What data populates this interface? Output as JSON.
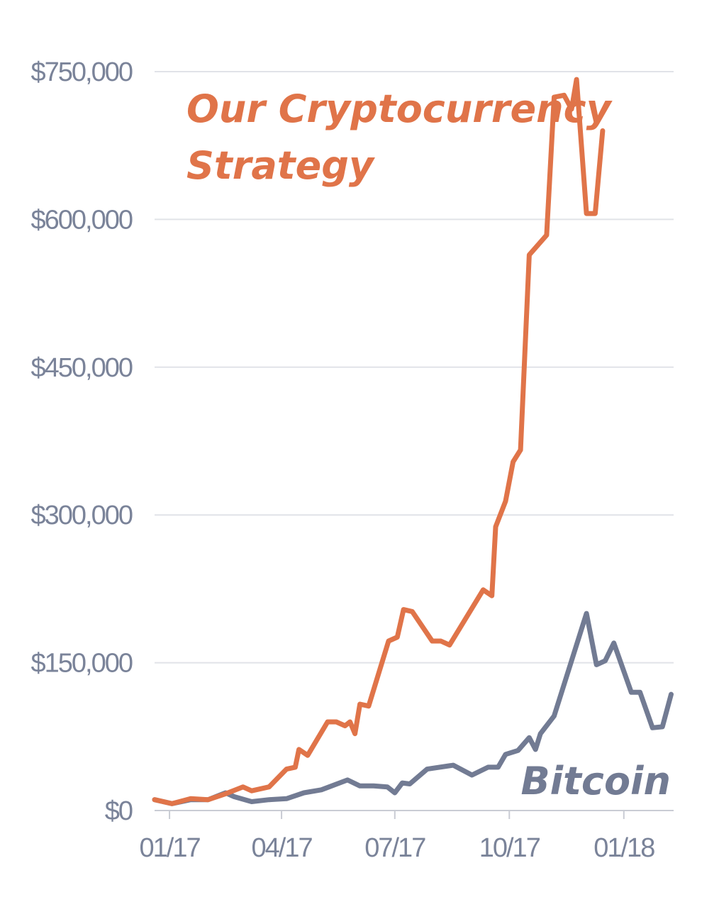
{
  "chart_data": {
    "type": "line",
    "title": "",
    "xlabel": "",
    "ylabel": "",
    "x_ticks": [
      "01/17",
      "04/17",
      "07/17",
      "10/17",
      "01/18"
    ],
    "y_ticks": [
      "$0",
      "$150,000",
      "$300,000",
      "$450,000",
      "$600,000",
      "$750,000"
    ],
    "ylim": [
      0,
      750000
    ],
    "grid": true,
    "legend": "none",
    "annotations": [
      {
        "text": "Our Cryptocurrency",
        "series": "Our Cryptocurrency Strategy"
      },
      {
        "text": "Strategy",
        "series": "Our Cryptocurrency Strategy"
      },
      {
        "text": "Bitcoin",
        "series": "Bitcoin"
      }
    ],
    "series": [
      {
        "name": "Our Cryptocurrency Strategy",
        "color": "#e07449",
        "points": [
          [
            "2016-12-20",
            11000
          ],
          [
            "2017-01-03",
            7000
          ],
          [
            "2017-01-18",
            12000
          ],
          [
            "2017-02-01",
            11000
          ],
          [
            "2017-02-15",
            17000
          ],
          [
            "2017-03-01",
            24000
          ],
          [
            "2017-03-08",
            20000
          ],
          [
            "2017-03-22",
            24000
          ],
          [
            "2017-04-05",
            42000
          ],
          [
            "2017-04-12",
            44000
          ],
          [
            "2017-04-15",
            62000
          ],
          [
            "2017-04-22",
            56000
          ],
          [
            "2017-05-08",
            90000
          ],
          [
            "2017-05-15",
            90000
          ],
          [
            "2017-05-22",
            86000
          ],
          [
            "2017-05-26",
            90000
          ],
          [
            "2017-05-30",
            78000
          ],
          [
            "2017-06-03",
            108000
          ],
          [
            "2017-06-10",
            106000
          ],
          [
            "2017-06-26",
            172000
          ],
          [
            "2017-07-03",
            176000
          ],
          [
            "2017-07-08",
            204000
          ],
          [
            "2017-07-15",
            202000
          ],
          [
            "2017-07-31",
            172000
          ],
          [
            "2017-08-07",
            172000
          ],
          [
            "2017-08-14",
            168000
          ],
          [
            "2017-09-10",
            224000
          ],
          [
            "2017-09-17",
            218000
          ],
          [
            "2017-09-20",
            288000
          ],
          [
            "2017-09-28",
            314000
          ],
          [
            "2017-10-04",
            354000
          ],
          [
            "2017-10-10",
            366000
          ],
          [
            "2017-10-17",
            564000
          ],
          [
            "2017-10-31",
            584000
          ],
          [
            "2017-11-06",
            724000
          ],
          [
            "2017-11-14",
            726000
          ],
          [
            "2017-11-20",
            712000
          ],
          [
            "2017-11-24",
            742000
          ],
          [
            "2017-12-02",
            606000
          ],
          [
            "2017-12-09",
            606000
          ],
          [
            "2017-12-15",
            690000
          ]
        ]
      },
      {
        "name": "Bitcoin",
        "color": "#727b93",
        "points": [
          [
            "2016-12-20",
            11000
          ],
          [
            "2017-01-03",
            7000
          ],
          [
            "2017-01-18",
            11000
          ],
          [
            "2017-02-01",
            11000
          ],
          [
            "2017-02-15",
            18000
          ],
          [
            "2017-02-22",
            14000
          ],
          [
            "2017-03-08",
            9000
          ],
          [
            "2017-03-22",
            11000
          ],
          [
            "2017-04-05",
            12000
          ],
          [
            "2017-04-19",
            18000
          ],
          [
            "2017-05-03",
            21000
          ],
          [
            "2017-05-24",
            31000
          ],
          [
            "2017-06-03",
            25000
          ],
          [
            "2017-06-14",
            25000
          ],
          [
            "2017-06-25",
            24000
          ],
          [
            "2017-07-01",
            18000
          ],
          [
            "2017-07-07",
            28000
          ],
          [
            "2017-07-13",
            27000
          ],
          [
            "2017-07-27",
            42000
          ],
          [
            "2017-08-17",
            46000
          ],
          [
            "2017-09-01",
            36000
          ],
          [
            "2017-09-14",
            44000
          ],
          [
            "2017-09-22",
            44000
          ],
          [
            "2017-09-28",
            57000
          ],
          [
            "2017-10-08",
            61000
          ],
          [
            "2017-10-17",
            74000
          ],
          [
            "2017-10-22",
            62000
          ],
          [
            "2017-10-26",
            78000
          ],
          [
            "2017-11-06",
            96000
          ],
          [
            "2017-12-02",
            200000
          ],
          [
            "2017-12-10",
            148000
          ],
          [
            "2017-12-17",
            152000
          ],
          [
            "2017-12-24",
            170000
          ],
          [
            "2018-01-07",
            120000
          ],
          [
            "2018-01-14",
            120000
          ],
          [
            "2018-01-24",
            84000
          ],
          [
            "2018-02-01",
            85000
          ],
          [
            "2018-02-08",
            118000
          ]
        ]
      }
    ]
  }
}
